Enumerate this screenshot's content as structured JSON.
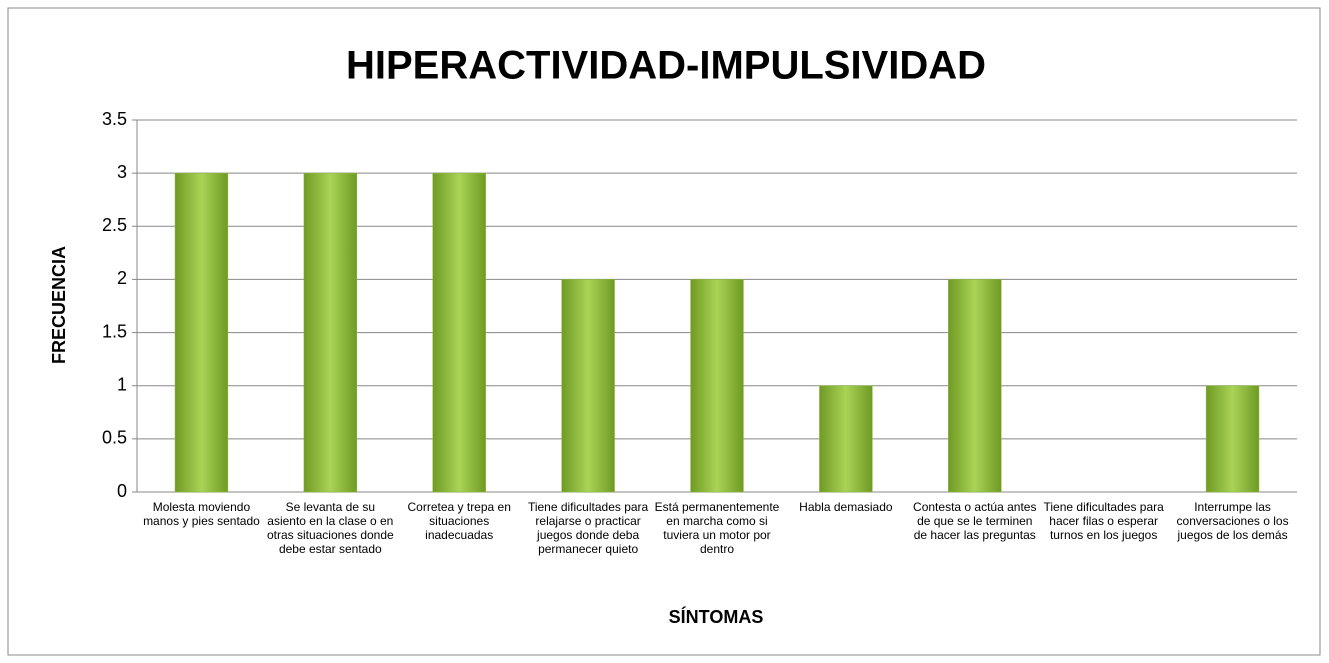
{
  "chart_data": {
    "type": "bar",
    "title": "HIPERACTIVIDAD-IMPULSIVIDAD",
    "x_label": "SÍNTOMAS",
    "y_label": "FRECUENCIA",
    "categories": [
      "Molesta moviendo manos y  pies sentado",
      "Se levanta de su asiento en la clase o en otras situaciones donde debe estar sentado",
      "Corretea y trepa en situaciones inadecuadas",
      "Tiene dificultades para relajarse o practicar juegos donde deba permanecer quieto",
      "Está permanentemente en marcha como si tuviera un motor por dentro",
      "Habla demasiado",
      "Contesta o actúa antes de que se le terminen de hacer las preguntas",
      "Tiene dificultades para hacer filas o esperar turnos en los juegos",
      "Interrumpe las conversaciones o los juegos de los demás"
    ],
    "values": [
      3,
      3,
      3,
      2,
      2,
      1,
      2,
      0,
      1
    ],
    "color": "#8db83a",
    "ylim": [
      0,
      3.5
    ],
    "yticks": [
      0,
      0.5,
      1,
      1.5,
      2,
      2.5,
      3,
      3.5
    ],
    "grid": true
  }
}
